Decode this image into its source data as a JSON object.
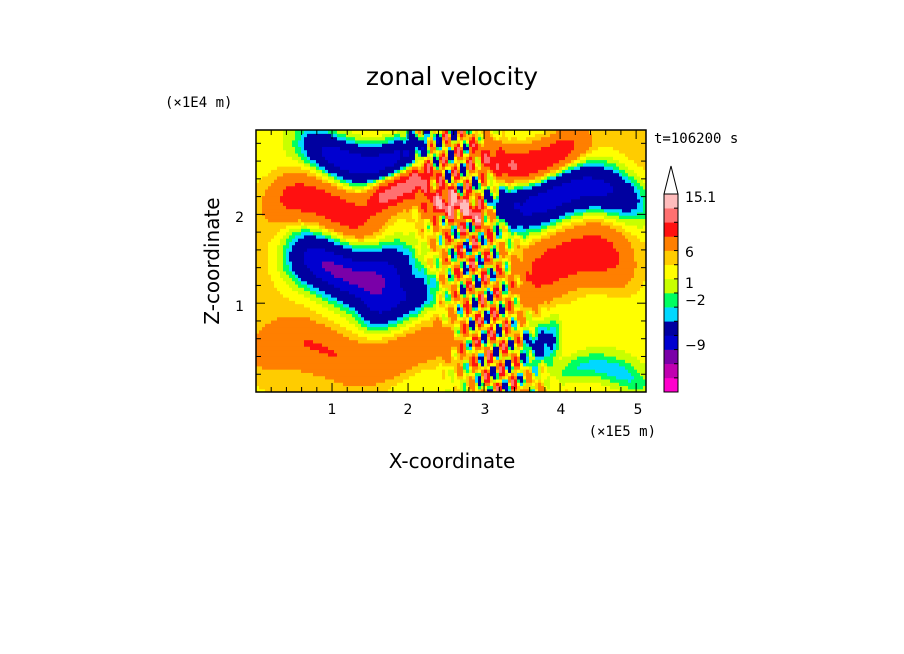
{
  "chart_data": {
    "type": "heatmap",
    "title": "zonal velocity",
    "xlabel": "X-coordinate",
    "ylabel": "Z-coordinate",
    "x_unit": "(×1E5 m)",
    "y_unit": "(×1E4 m)",
    "time_label": "t=106200 s",
    "xlim": [
      0,
      5.13
    ],
    "ylim": [
      0,
      2.95
    ],
    "x_ticks": [
      "1",
      "2",
      "3",
      "4",
      "5"
    ],
    "x_tick_values": [
      1,
      2,
      3,
      4,
      5
    ],
    "y_ticks": [
      "1",
      "2"
    ],
    "y_tick_values": [
      1,
      2
    ],
    "grid": false,
    "colorbar": {
      "levels": [
        -15.1,
        -12,
        -9,
        -6,
        -2,
        -1,
        0,
        1,
        2,
        3,
        6,
        9,
        12,
        15.1
      ],
      "colors": [
        "#ff00cc",
        "#c000b0",
        "#7a00a8",
        "#0000d0",
        "#0000a0",
        "#00d8ff",
        "#00ff60",
        "#c8ff00",
        "#ffff00",
        "#ffcc00",
        "#ff7f00",
        "#ff1010",
        "#ff7070",
        "#ffbcbc"
      ],
      "tick_labels": [
        "15.1",
        "6",
        "1",
        "−2",
        "−9"
      ],
      "tick_values": [
        15.1,
        6,
        1,
        -2,
        -9
      ],
      "extend": "max"
    },
    "bands": [
      {
        "y": 2.68,
        "thick": 0.22,
        "amp": -10,
        "x0": 0.65,
        "x1": 2.25
      },
      {
        "y": 2.67,
        "thick": 0.2,
        "amp": 8,
        "x0": 2.85,
        "x1": 4.3
      },
      {
        "y": 2.33,
        "thick": 0.18,
        "amp": 9,
        "x0": 1.5,
        "x1": 2.35
      },
      {
        "y": 2.08,
        "thick": 0.26,
        "amp": 7,
        "x0": 0.2,
        "x1": 1.6
      },
      {
        "y": 2.2,
        "thick": 0.26,
        "amp": -9,
        "x0": 3.1,
        "x1": 5.1
      },
      {
        "y": 2.02,
        "thick": 0.14,
        "amp": 10,
        "x0": 2.25,
        "x1": 3.05
      },
      {
        "y": 1.4,
        "thick": 0.3,
        "amp": -11,
        "x0": 0.45,
        "x1": 2.0
      },
      {
        "y": 1.05,
        "thick": 0.22,
        "amp": -6,
        "x0": 1.4,
        "x1": 2.35
      },
      {
        "y": 1.45,
        "thick": 0.32,
        "amp": 7,
        "x0": 3.5,
        "x1": 4.9
      },
      {
        "y": 0.45,
        "thick": 0.24,
        "amp": 4,
        "x0": 0.0,
        "x1": 2.7
      },
      {
        "y": 0.18,
        "thick": 0.16,
        "amp": -3,
        "x0": 3.9,
        "x1": 5.13
      },
      {
        "y": 0.6,
        "thick": 0.25,
        "amp": -5,
        "x0": 3.5,
        "x1": 4.0
      }
    ],
    "gravity_wave_zone": {
      "x_center": 2.95,
      "amp": 9
    }
  }
}
